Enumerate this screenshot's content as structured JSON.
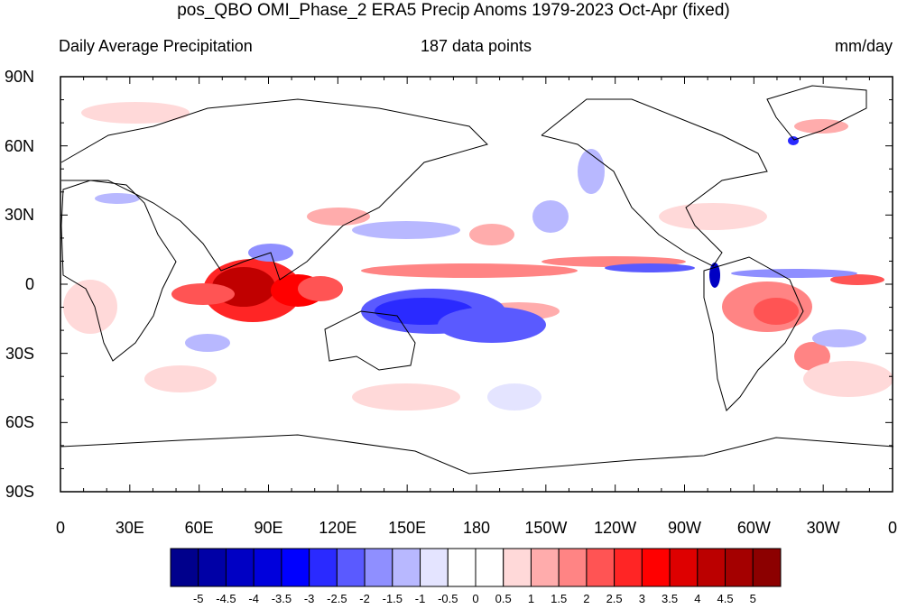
{
  "title": "pos_QBO OMI_Phase_2 ERA5 Precip Anoms 1979-2023 Oct-Apr (fixed)",
  "subtitle_left": "Daily Average Precipitation",
  "subtitle_center": "187 data points",
  "subtitle_right": "mm/day",
  "lat_labels": [
    "90N",
    "60N",
    "30N",
    "0",
    "30S",
    "60S",
    "90S"
  ],
  "lon_labels": [
    "0",
    "30E",
    "60E",
    "90E",
    "120E",
    "150E",
    "180",
    "150W",
    "120W",
    "90W",
    "60W",
    "30W",
    "0"
  ],
  "colorbar": {
    "labels": [
      "-5",
      "-4.5",
      "-4",
      "-3.5",
      "-3",
      "-2.5",
      "-2",
      "-1.5",
      "-1",
      "-0.5",
      "0",
      "0.5",
      "1",
      "1.5",
      "2",
      "2.5",
      "3",
      "3.5",
      "4",
      "4.5",
      "5"
    ],
    "colors": [
      "#00008c",
      "#0000a6",
      "#0000c4",
      "#0000dc",
      "#0000ff",
      "#2a2aff",
      "#5a5aff",
      "#8f8fff",
      "#b8b8ff",
      "#e4e4ff",
      "#ffffff",
      "#ffffff",
      "#ffd9d9",
      "#ffacac",
      "#ff8484",
      "#ff5454",
      "#ff2525",
      "#ff0000",
      "#de0000",
      "#bb0000",
      "#a40000",
      "#8c0000"
    ]
  }
}
